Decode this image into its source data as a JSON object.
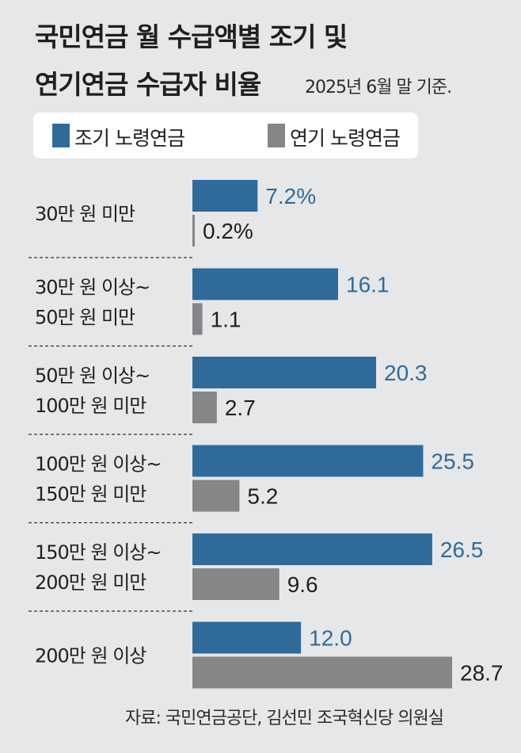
{
  "title_line1": "국민연금 월 수급액별 조기 및",
  "title_line2": "연기연금 수급자 비율",
  "subtitle": "2025년 6월 말 기준.",
  "source": "자료: 국민연금공단, 김선민 조국혁신당 의원실",
  "colors": {
    "early": "#2f6b9a",
    "delayed": "#858688",
    "background": "#e6e7e9"
  },
  "chart_data": {
    "type": "bar",
    "orientation": "horizontal",
    "categories": [
      [
        "30만 원 미만"
      ],
      [
        "30만 원 이상~",
        "50만 원 미만"
      ],
      [
        "50만 원 이상~",
        "100만 원 미만"
      ],
      [
        "100만 원 이상~",
        "150만 원 미만"
      ],
      [
        "150만 원 이상~",
        "200만 원 미만"
      ],
      [
        "200만 원 이상"
      ]
    ],
    "series": [
      {
        "name": "조기 노령연금",
        "values": [
          7.2,
          16.1,
          20.3,
          25.5,
          26.5,
          12.0
        ],
        "labels": [
          "7.2%",
          "16.1",
          "20.3",
          "25.5",
          "26.5",
          "12.0"
        ]
      },
      {
        "name": "연기 노령연금",
        "values": [
          0.2,
          1.1,
          2.7,
          5.2,
          9.6,
          28.7
        ],
        "labels": [
          "0.2%",
          "1.1",
          "2.7",
          "5.2",
          "9.6",
          "28.7"
        ]
      }
    ],
    "legend_position": "top-left",
    "grid": false
  }
}
